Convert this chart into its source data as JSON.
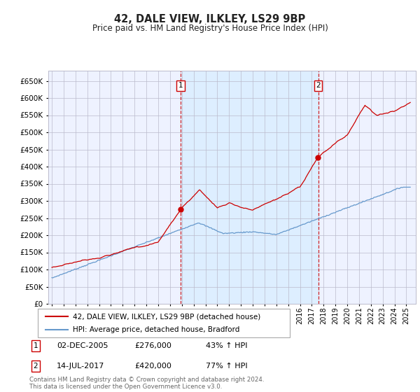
{
  "title": "42, DALE VIEW, ILKLEY, LS29 9BP",
  "subtitle": "Price paid vs. HM Land Registry's House Price Index (HPI)",
  "legend_line1": "42, DALE VIEW, ILKLEY, LS29 9BP (detached house)",
  "legend_line2": "HPI: Average price, detached house, Bradford",
  "footnote": "Contains HM Land Registry data © Crown copyright and database right 2024.\nThis data is licensed under the Open Government Licence v3.0.",
  "sale1_date": "02-DEC-2005",
  "sale1_price": 276000,
  "sale1_hpi": "43% ↑ HPI",
  "sale2_date": "14-JUL-2017",
  "sale2_price": 420000,
  "sale2_hpi": "77% ↑ HPI",
  "red_color": "#cc0000",
  "blue_color": "#6699cc",
  "shade_color": "#ddeeff",
  "background_color": "#eef2ff",
  "grid_color": "#bbbbcc",
  "ylim": [
    0,
    680000
  ],
  "yticks": [
    0,
    50000,
    100000,
    150000,
    200000,
    250000,
    300000,
    350000,
    400000,
    450000,
    500000,
    550000,
    600000,
    650000
  ],
  "sale1_x": 2005.92,
  "sale2_x": 2017.54,
  "xmin": 1994.7,
  "xmax": 2025.8
}
